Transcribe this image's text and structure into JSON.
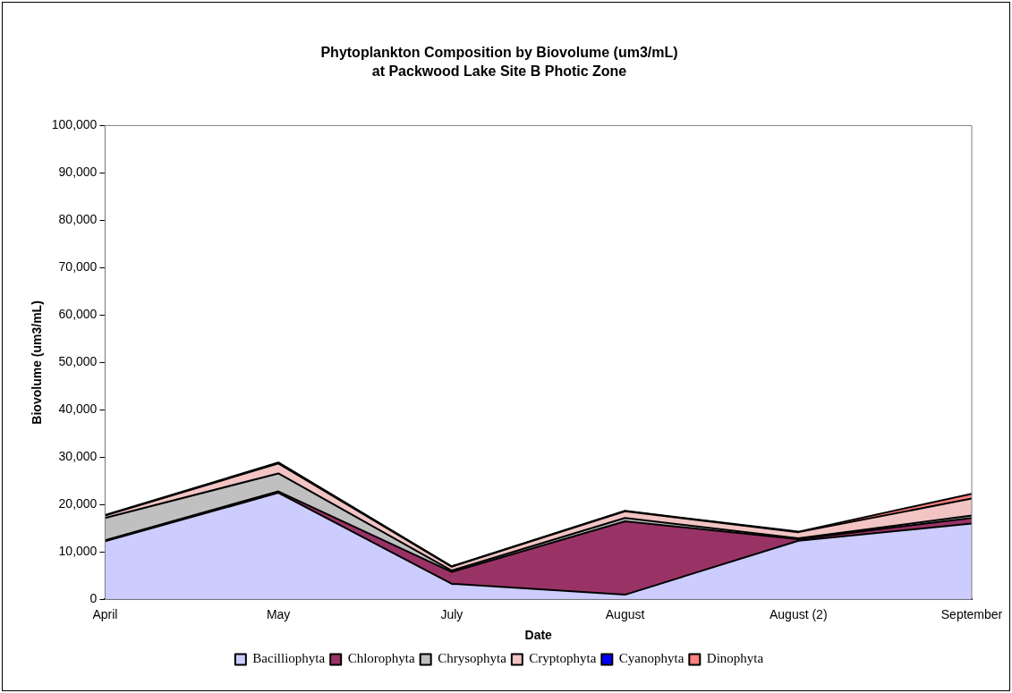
{
  "chart_data": {
    "type": "area",
    "title": "Phytoplankton Composition by Biovolume (um3/mL)",
    "subtitle": "at Packwood Lake Site B Photic Zone",
    "xlabel": "Date",
    "ylabel": "Biovolume (um3/mL)",
    "categories": [
      "April",
      "May",
      "July",
      "August",
      "August (2)",
      "September"
    ],
    "stacked": true,
    "grid": false,
    "legend": "bottom",
    "ylim": [
      0,
      100000
    ],
    "yticks": [
      0,
      {
        "value": 10000,
        "label": "10,000"
      },
      {
        "value": 20000,
        "label": "20,000"
      },
      {
        "value": 30000,
        "label": "30,000"
      },
      {
        "value": 40000,
        "label": "40,000"
      },
      {
        "value": 50000,
        "label": "50,000"
      },
      {
        "value": 60000,
        "label": "60,000"
      },
      {
        "value": 70000,
        "label": "70,000"
      },
      {
        "value": 80000,
        "label": "80,000"
      },
      {
        "value": 90000,
        "label": "90,000"
      },
      {
        "value": 100000,
        "label": "100,000"
      }
    ],
    "series": [
      {
        "name": "Bacilliophyta",
        "color": "#ccccff",
        "values": [
          12300,
          22500,
          3300,
          1000,
          12400,
          16000
        ]
      },
      {
        "name": "Chlorophyta",
        "color": "#993366",
        "values": [
          200,
          300,
          2500,
          15500,
          300,
          1200
        ]
      },
      {
        "name": "Chrysophyta",
        "color": "#c0c0c0",
        "values": [
          4700,
          3800,
          300,
          700,
          200,
          500
        ]
      },
      {
        "name": "Cryptophyta",
        "color": "#f2c4c4",
        "values": [
          500,
          2100,
          800,
          1400,
          1300,
          3600
        ]
      },
      {
        "name": "Cyanophyta",
        "color": "#0000ff",
        "values": [
          null,
          null,
          null,
          null,
          null,
          null
        ]
      },
      {
        "name": "Dinophyta",
        "color": "#ff8080",
        "values": [
          100,
          200,
          100,
          100,
          100,
          1000
        ]
      }
    ]
  }
}
